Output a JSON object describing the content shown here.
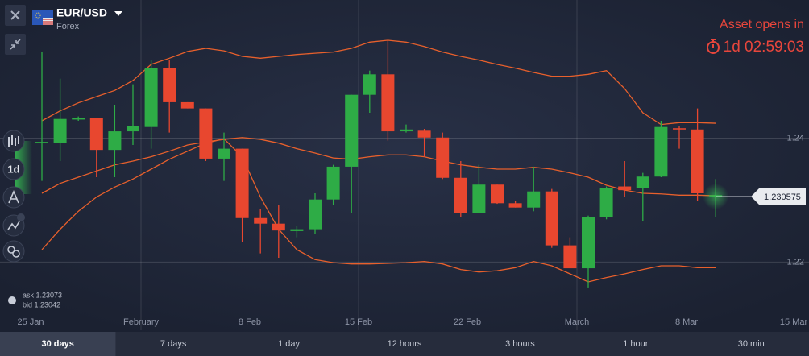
{
  "header": {
    "symbol": "EUR/USD",
    "market": "Forex",
    "countdown_title": "Asset opens in",
    "countdown": "1d 02:59:03"
  },
  "toolbar": {
    "timeframe": "1d"
  },
  "quotes": {
    "ask": "ask 1.23073",
    "bid": "bid 1.23042"
  },
  "tabs": {
    "items": [
      "30 days",
      "7 days",
      "1 day",
      "12 hours",
      "3 hours",
      "1 hour",
      "30 min"
    ],
    "active": "30 days"
  },
  "chart_data": {
    "type": "candlestick",
    "xtick_labels": [
      "25 Jan",
      "February",
      "8 Feb",
      "15 Feb",
      "22 Feb",
      "March",
      "8 Mar",
      "15 Mar"
    ],
    "ylim": [
      1.209,
      1.2623
    ],
    "yticks": [
      1.24,
      1.22
    ],
    "grid": true,
    "up_color": "#2eac46",
    "down_color": "#e8472f",
    "band_color": "#e8602c",
    "open": [
      1.2394,
      1.2392,
      1.2431,
      1.2432,
      1.2381,
      1.2411,
      1.2418,
      1.2513,
      1.2458,
      1.2448,
      1.2367,
      1.2383,
      1.2271,
      1.2262,
      1.225,
      1.2253,
      1.2301,
      1.2354,
      1.247,
      1.2503,
      1.2411,
      1.2412,
      1.2401,
      1.2336,
      1.2279,
      1.2325,
      1.2295,
      1.2288,
      1.2314,
      1.2227,
      1.219,
      1.2272,
      1.2322,
      1.2319,
      1.2338,
      1.2416,
      1.2414,
      1.2306
    ],
    "high": [
      1.2539,
      1.2496,
      1.2435,
      1.2432,
      1.2454,
      1.2487,
      1.2526,
      1.2526,
      1.2458,
      1.2448,
      1.2409,
      1.2383,
      1.2285,
      1.2292,
      1.2259,
      1.2311,
      1.2357,
      1.247,
      1.2509,
      1.2558,
      1.2422,
      1.2415,
      1.2409,
      1.2363,
      1.2357,
      1.2325,
      1.2298,
      1.2354,
      1.2318,
      1.224,
      1.2275,
      1.2322,
      1.2363,
      1.2344,
      1.2428,
      1.2419,
      1.2448,
      1.2334
    ],
    "low": [
      1.2331,
      1.2363,
      1.2428,
      1.2337,
      1.2337,
      1.2389,
      1.2383,
      1.2409,
      1.2448,
      1.2363,
      1.2331,
      1.2233,
      1.2214,
      1.2207,
      1.224,
      1.2246,
      1.2292,
      1.2279,
      1.2441,
      1.2396,
      1.2409,
      1.237,
      1.2334,
      1.2272,
      1.2279,
      1.2294,
      1.2288,
      1.2282,
      1.2223,
      1.219,
      1.2159,
      1.2269,
      1.2305,
      1.2266,
      1.2337,
      1.2383,
      1.2298,
      1.2272
    ],
    "close": [
      1.2394,
      1.2431,
      1.2432,
      1.2381,
      1.2411,
      1.2419,
      1.2513,
      1.2458,
      1.2448,
      1.2367,
      1.2383,
      1.2271,
      1.2262,
      1.2251,
      1.2253,
      1.2301,
      1.2354,
      1.247,
      1.2503,
      1.2411,
      1.2414,
      1.2401,
      1.2336,
      1.2279,
      1.2325,
      1.2295,
      1.2288,
      1.2314,
      1.2227,
      1.219,
      1.2272,
      1.2319,
      1.2316,
      1.2338,
      1.2418,
      1.2414,
      1.2311,
      1.2308
    ],
    "bands": {
      "upper": [
        1.2428,
        1.2444,
        1.2457,
        1.2467,
        1.2477,
        1.2493,
        1.2519,
        1.2529,
        1.254,
        1.2545,
        1.2541,
        1.2532,
        1.2529,
        1.2532,
        1.2535,
        1.2537,
        1.2539,
        1.2545,
        1.2555,
        1.2558,
        1.2555,
        1.2548,
        1.2539,
        1.2532,
        1.2526,
        1.2519,
        1.2513,
        1.2506,
        1.25,
        1.25,
        1.2503,
        1.2509,
        1.248,
        1.2441,
        1.2422,
        1.2425,
        1.2425,
        1.2424
      ],
      "middle": [
        1.2311,
        1.2327,
        1.2337,
        1.2347,
        1.2357,
        1.2363,
        1.237,
        1.2379,
        1.2389,
        1.2394,
        1.2398,
        1.2401,
        1.2398,
        1.2392,
        1.2383,
        1.2376,
        1.2368,
        1.2366,
        1.237,
        1.2373,
        1.2373,
        1.237,
        1.2363,
        1.2357,
        1.2353,
        1.235,
        1.235,
        1.2353,
        1.235,
        1.2344,
        1.2337,
        1.2324,
        1.2316,
        1.2311,
        1.231,
        1.2308,
        1.2308,
        1.2307
      ],
      "lower": [
        1.222,
        1.2253,
        1.2282,
        1.2305,
        1.2321,
        1.2334,
        1.235,
        1.2366,
        1.2379,
        1.2392,
        1.2399,
        1.237,
        1.2305,
        1.2253,
        1.222,
        1.2204,
        1.2199,
        1.2197,
        1.2197,
        1.2198,
        1.2199,
        1.2201,
        1.2197,
        1.2188,
        1.2184,
        1.2186,
        1.2191,
        1.2201,
        1.2194,
        1.2181,
        1.2168,
        1.2175,
        1.2181,
        1.2188,
        1.2194,
        1.2194,
        1.2191,
        1.2191
      ]
    },
    "last_price": 1.230575
  }
}
